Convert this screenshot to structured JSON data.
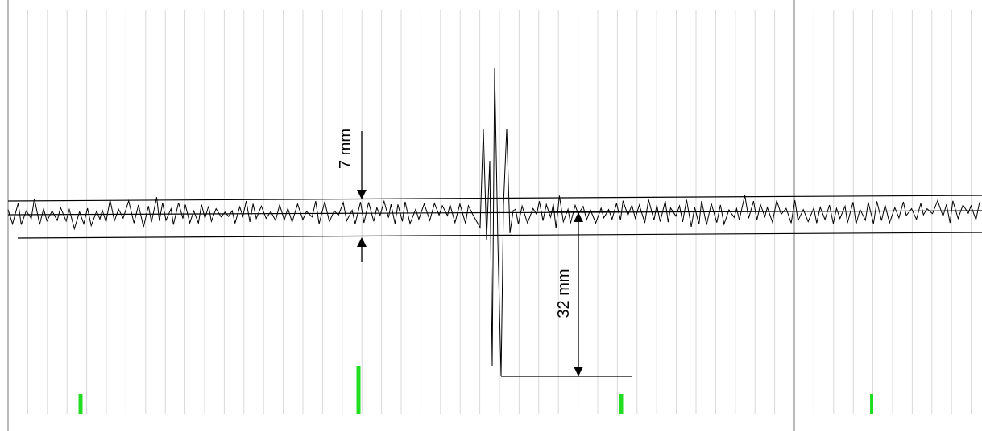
{
  "colors": {
    "background": "#ffffff",
    "grid_minor": "#d9d9d9",
    "grid_major": "#8c8c8c",
    "trace": "#000000",
    "marker": "#22dd22"
  },
  "annotations": {
    "small_gap_label": "7 mm",
    "large_gap_label": "32 mm"
  }
}
